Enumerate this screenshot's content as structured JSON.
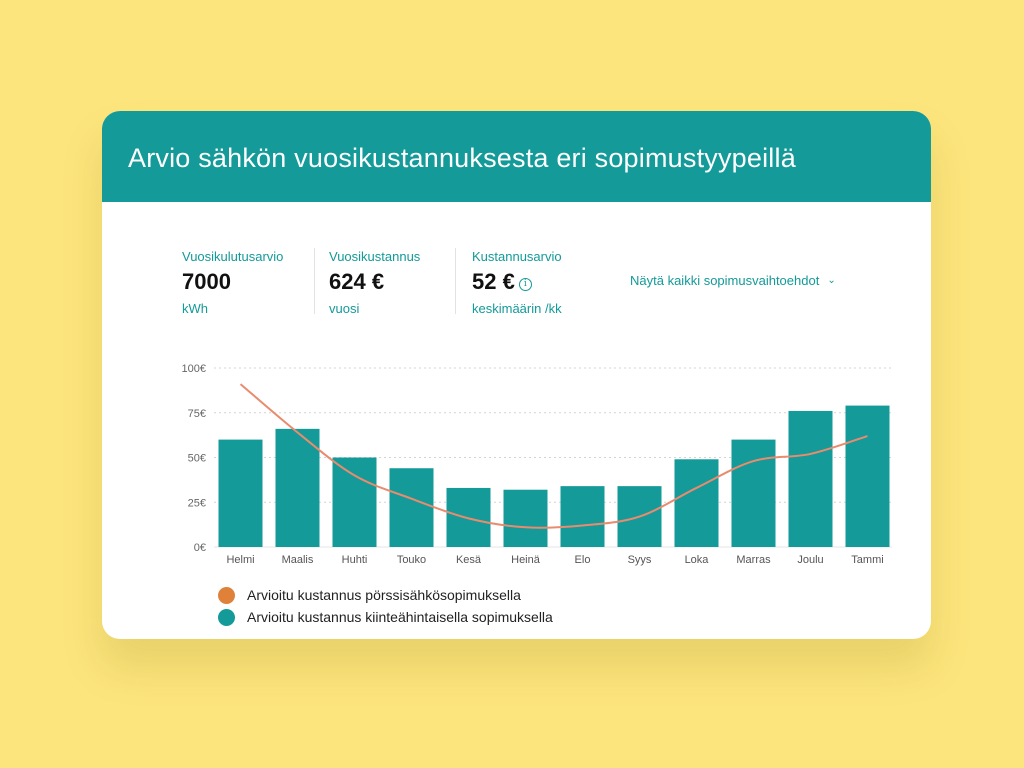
{
  "header": {
    "title": "Arvio sähkön vuosikustannuksesta eri sopimustyypeillä"
  },
  "stats": [
    {
      "label": "Vuosikulutusarvio",
      "value": "7000",
      "sub": "kWh"
    },
    {
      "label": "Vuosikustannus",
      "value": "624 €",
      "sub": "vuosi"
    },
    {
      "label": "Kustannusarvio",
      "value": "52 €",
      "sub": "keskimäärin /kk",
      "info_icon": "info-icon"
    }
  ],
  "show_all": {
    "label": "Näytä kaikki sopimusvaihtoehdot",
    "icon": "chevron-down-icon"
  },
  "colors": {
    "teal": "#139A99",
    "orange": "#E0813A",
    "line": "#E98B6E",
    "background": "#FCE57C"
  },
  "chart_data": {
    "type": "bar",
    "categories": [
      "Helmi",
      "Maalis",
      "Huhti",
      "Touko",
      "Kesä",
      "Heinä",
      "Elo",
      "Syys",
      "Loka",
      "Marras",
      "Joulu",
      "Tammi"
    ],
    "series": [
      {
        "name": "Arvioitu kustannus kiinteähintaisella sopimuksella",
        "type": "bar",
        "color": "#139A99",
        "values": [
          60,
          66,
          50,
          44,
          33,
          32,
          34,
          34,
          49,
          60,
          76,
          79
        ]
      },
      {
        "name": "Arvioitu kustannus pörssisähkösopimuksella",
        "type": "line",
        "color": "#E98B6E",
        "values": [
          91,
          64,
          40,
          27,
          16,
          11,
          12,
          17,
          33,
          48,
          52,
          62
        ]
      }
    ],
    "yticks": [
      "0€",
      "25€",
      "50€",
      "75€",
      "100€"
    ],
    "ylim": [
      0,
      100
    ],
    "grid": "dotted horizontal",
    "legend": [
      {
        "label": "Arvioitu kustannus pörssisähkösopimuksella",
        "color": "#E0813A"
      },
      {
        "label": "Arvioitu kustannus kiinteähintaisella sopimuksella",
        "color": "#139A99"
      }
    ]
  }
}
